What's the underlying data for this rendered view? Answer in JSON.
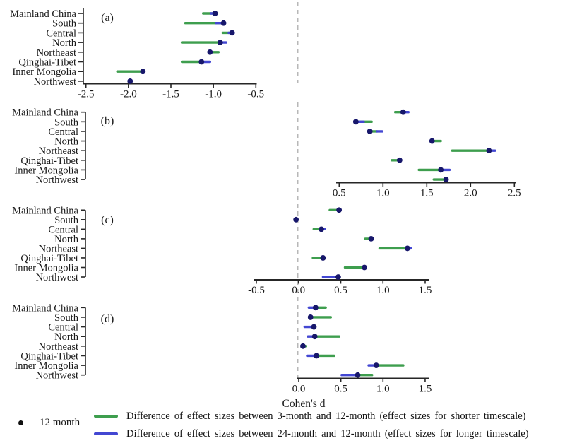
{
  "figure": {
    "xlabel": "Cohen's d",
    "regions": [
      "Mainland China",
      "South",
      "Central",
      "North",
      "Northeast",
      "Qinghai-Tibet",
      "Inner Mongolia",
      "Northwest"
    ],
    "colors": {
      "green": "#3e9e4e",
      "blue": "#4347d2",
      "dot": "#17176b",
      "axis": "#262626",
      "text": "#1a1a1a",
      "dashed": "#b8b8b8",
      "legend_dot": "#111111"
    },
    "legend": {
      "point_label": "12 month",
      "green_label": "Difference of effect sizes between 3-month and 12-month (effect sizes for shorter timescale)",
      "blue_label": "Difference of effect sizes between 24-month and 12-month (effect sizes for longer timescale)"
    }
  },
  "chart_data": [
    {
      "type": "dot-interval",
      "panel": "(a)",
      "axis": {
        "min": -2.5,
        "max": -0.5,
        "ticks": [
          "-2.5",
          "-2.0",
          "-1.5",
          "-1.0",
          "-0.5"
        ]
      },
      "rows": [
        {
          "region": "Mainland China",
          "dot": -0.98,
          "green": [
            -1.12,
            -0.98
          ],
          "blue": [
            -1.03,
            -0.98
          ]
        },
        {
          "region": "South",
          "dot": -0.88,
          "green": [
            -1.33,
            -0.88
          ],
          "blue": [
            -0.97,
            -0.88
          ]
        },
        {
          "region": "Central",
          "dot": -0.78,
          "green": [
            -0.89,
            -0.78
          ],
          "blue": [
            -0.82,
            -0.76
          ]
        },
        {
          "region": "North",
          "dot": -0.92,
          "green": [
            -1.37,
            -0.92
          ],
          "blue": [
            -0.92,
            -0.85
          ]
        },
        {
          "region": "Northeast",
          "dot": -1.04,
          "green": [
            -1.04,
            -0.94
          ],
          "blue": null
        },
        {
          "region": "Qinghai-Tibet",
          "dot": -1.14,
          "green": [
            -1.37,
            -1.14
          ],
          "blue": [
            -1.14,
            -1.04
          ]
        },
        {
          "region": "Inner Mongolia",
          "dot": -1.83,
          "green": [
            -2.13,
            -1.83
          ],
          "blue": null
        },
        {
          "region": "Northwest",
          "dot": -1.98,
          "green": null,
          "blue": null
        }
      ]
    },
    {
      "type": "dot-interval",
      "panel": "(b)",
      "axis": {
        "min": 0.5,
        "max": 2.5,
        "ticks": [
          "0.5",
          "1.0",
          "1.5",
          "2.0",
          "2.5"
        ]
      },
      "rows": [
        {
          "region": "Mainland China",
          "dot": 1.23,
          "green": [
            1.14,
            1.23
          ],
          "blue": [
            1.23,
            1.29
          ]
        },
        {
          "region": "South",
          "dot": 0.69,
          "green": [
            0.69,
            0.87
          ],
          "blue": [
            0.69,
            0.78
          ]
        },
        {
          "region": "Central",
          "dot": 0.85,
          "green": [
            0.85,
            0.93
          ],
          "blue": [
            0.93,
            0.99
          ]
        },
        {
          "region": "North",
          "dot": 1.56,
          "green": [
            1.56,
            1.66
          ],
          "blue": null
        },
        {
          "region": "Northeast",
          "dot": 2.21,
          "green": [
            1.79,
            2.21
          ],
          "blue": [
            2.21,
            2.28
          ]
        },
        {
          "region": "Qinghai-Tibet",
          "dot": 1.19,
          "green": [
            1.1,
            1.19
          ],
          "blue": null
        },
        {
          "region": "Inner Mongolia",
          "dot": 1.66,
          "green": [
            1.41,
            1.66
          ],
          "blue": [
            1.66,
            1.76
          ]
        },
        {
          "region": "Northwest",
          "dot": 1.72,
          "green": [
            1.58,
            1.72
          ],
          "blue": null
        }
      ]
    },
    {
      "type": "dot-interval",
      "panel": "(c)",
      "axis": {
        "min": -0.5,
        "max": 1.5,
        "ticks": [
          "-0.5",
          "0.0",
          "0.5",
          "1.0",
          "1.5"
        ]
      },
      "rows": [
        {
          "region": "Mainland China",
          "dot": 0.48,
          "green": [
            0.37,
            0.48
          ],
          "blue": null
        },
        {
          "region": "South",
          "dot": -0.03,
          "green": null,
          "blue": null
        },
        {
          "region": "Central",
          "dot": 0.27,
          "green": [
            0.18,
            0.27
          ],
          "blue": [
            0.27,
            0.31
          ]
        },
        {
          "region": "North",
          "dot": 0.86,
          "green": [
            0.79,
            0.86
          ],
          "blue": null
        },
        {
          "region": "Northeast",
          "dot": 1.29,
          "green": [
            0.96,
            1.29
          ],
          "blue": [
            1.29,
            1.33
          ]
        },
        {
          "region": "Qinghai-Tibet",
          "dot": 0.29,
          "green": [
            0.17,
            0.29
          ],
          "blue": null
        },
        {
          "region": "Inner Mongolia",
          "dot": 0.78,
          "green": [
            0.55,
            0.78
          ],
          "blue": null
        },
        {
          "region": "Northwest",
          "dot": 0.47,
          "green": null,
          "blue": [
            0.29,
            0.47
          ]
        }
      ]
    },
    {
      "type": "dot-interval",
      "panel": "(d)",
      "axis": {
        "min": 0.0,
        "max": 1.5,
        "ticks": [
          "0.0",
          "0.5",
          "1.0",
          "1.5"
        ]
      },
      "rows": [
        {
          "region": "Mainland China",
          "dot": 0.2,
          "green": [
            0.2,
            0.32
          ],
          "blue": [
            0.12,
            0.2
          ]
        },
        {
          "region": "South",
          "dot": 0.14,
          "green": [
            0.14,
            0.38
          ],
          "blue": null
        },
        {
          "region": "Central",
          "dot": 0.18,
          "green": null,
          "blue": [
            0.07,
            0.18
          ]
        },
        {
          "region": "North",
          "dot": 0.19,
          "green": [
            0.19,
            0.48
          ],
          "blue": [
            0.11,
            0.19
          ]
        },
        {
          "region": "Northeast",
          "dot": 0.05,
          "green": [
            0.05,
            0.08
          ],
          "blue": null
        },
        {
          "region": "Qinghai-Tibet",
          "dot": 0.21,
          "green": [
            0.21,
            0.42
          ],
          "blue": [
            0.1,
            0.21
          ]
        },
        {
          "region": "Inner Mongolia",
          "dot": 0.92,
          "green": [
            0.92,
            1.24
          ],
          "blue": [
            0.83,
            0.92
          ]
        },
        {
          "region": "Northwest",
          "dot": 0.7,
          "green": [
            0.7,
            0.87
          ],
          "blue": [
            0.51,
            0.7
          ]
        }
      ]
    }
  ]
}
